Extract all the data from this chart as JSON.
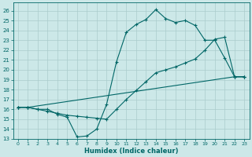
{
  "xlabel": "Humidex (Indice chaleur)",
  "bg_color": "#cce8e8",
  "grid_color": "#aacccc",
  "line_color": "#006666",
  "xlim": [
    -0.5,
    23.5
  ],
  "ylim": [
    13,
    26.8
  ],
  "xticks": [
    0,
    1,
    2,
    3,
    4,
    5,
    6,
    7,
    8,
    9,
    10,
    11,
    12,
    13,
    14,
    15,
    16,
    17,
    18,
    19,
    20,
    21,
    22,
    23
  ],
  "yticks": [
    13,
    14,
    15,
    16,
    17,
    18,
    19,
    20,
    21,
    22,
    23,
    24,
    25,
    26
  ],
  "line1_x": [
    0,
    1,
    2,
    3,
    4,
    5,
    6,
    7,
    8,
    9,
    10,
    11,
    12,
    13,
    14,
    15,
    16,
    17,
    18,
    19,
    20,
    21,
    22,
    23
  ],
  "line1_y": [
    16.2,
    16.2,
    16.0,
    16.0,
    15.5,
    15.2,
    13.2,
    13.3,
    14.0,
    16.5,
    20.8,
    23.8,
    24.6,
    25.1,
    26.1,
    25.2,
    24.8,
    25.0,
    24.5,
    23.0,
    23.0,
    21.2,
    19.3,
    19.3
  ],
  "line2_x": [
    0,
    1,
    2,
    3,
    4,
    5,
    6,
    7,
    8,
    9,
    10,
    11,
    12,
    13,
    14,
    15,
    16,
    17,
    18,
    19,
    20,
    21,
    22,
    23
  ],
  "line2_y": [
    16.2,
    16.2,
    16.0,
    15.8,
    15.6,
    15.4,
    15.3,
    15.2,
    15.1,
    15.0,
    16.0,
    17.0,
    17.9,
    18.8,
    19.7,
    20.0,
    20.3,
    20.7,
    21.1,
    22.0,
    23.1,
    23.3,
    19.3,
    19.3
  ],
  "line3_x": [
    0,
    1,
    22,
    23
  ],
  "line3_y": [
    16.2,
    16.2,
    19.3,
    19.3
  ]
}
